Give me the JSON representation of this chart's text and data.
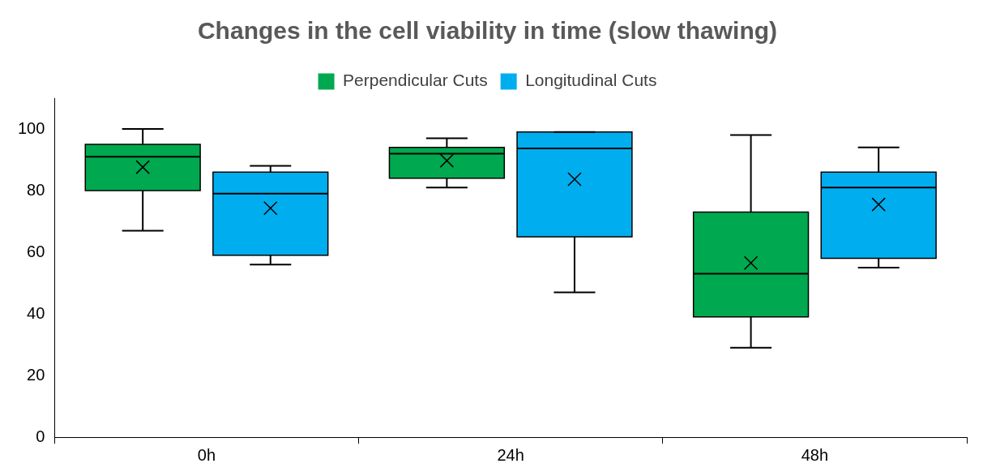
{
  "chart_data": {
    "type": "box",
    "title": "Changes in the cell viability in time (slow thawing)",
    "categories": [
      "0h",
      "24h",
      "48h"
    ],
    "series": [
      {
        "name": "Perpendicular Cuts",
        "color": "#00a94f",
        "boxes": [
          {
            "low": 67,
            "q1": 80,
            "median": 91,
            "q3": 95,
            "high": 100,
            "mean": 87.6
          },
          {
            "low": 81,
            "q1": 84,
            "median": 92,
            "q3": 94,
            "high": 97,
            "mean": 89.7
          },
          {
            "low": 29,
            "q1": 39,
            "median": 53,
            "q3": 73,
            "high": 98,
            "mean": 56.5
          }
        ]
      },
      {
        "name": "Longitudinal Cuts",
        "color": "#00aeef",
        "boxes": [
          {
            "low": 56,
            "q1": 59,
            "median": 79,
            "q3": 86,
            "high": 88,
            "mean": 74.3
          },
          {
            "low": 47,
            "q1": 65,
            "median": 93.7,
            "q3": 99,
            "high": 99,
            "mean": 83.7
          },
          {
            "low": 55,
            "q1": 58,
            "median": 81,
            "q3": 86,
            "high": 94,
            "mean": 75.5
          }
        ]
      }
    ],
    "ylim": [
      0,
      110
    ],
    "yticks": [
      0,
      20,
      40,
      60,
      80,
      100
    ],
    "grid": false,
    "legend": "top",
    "marker": "cross"
  }
}
